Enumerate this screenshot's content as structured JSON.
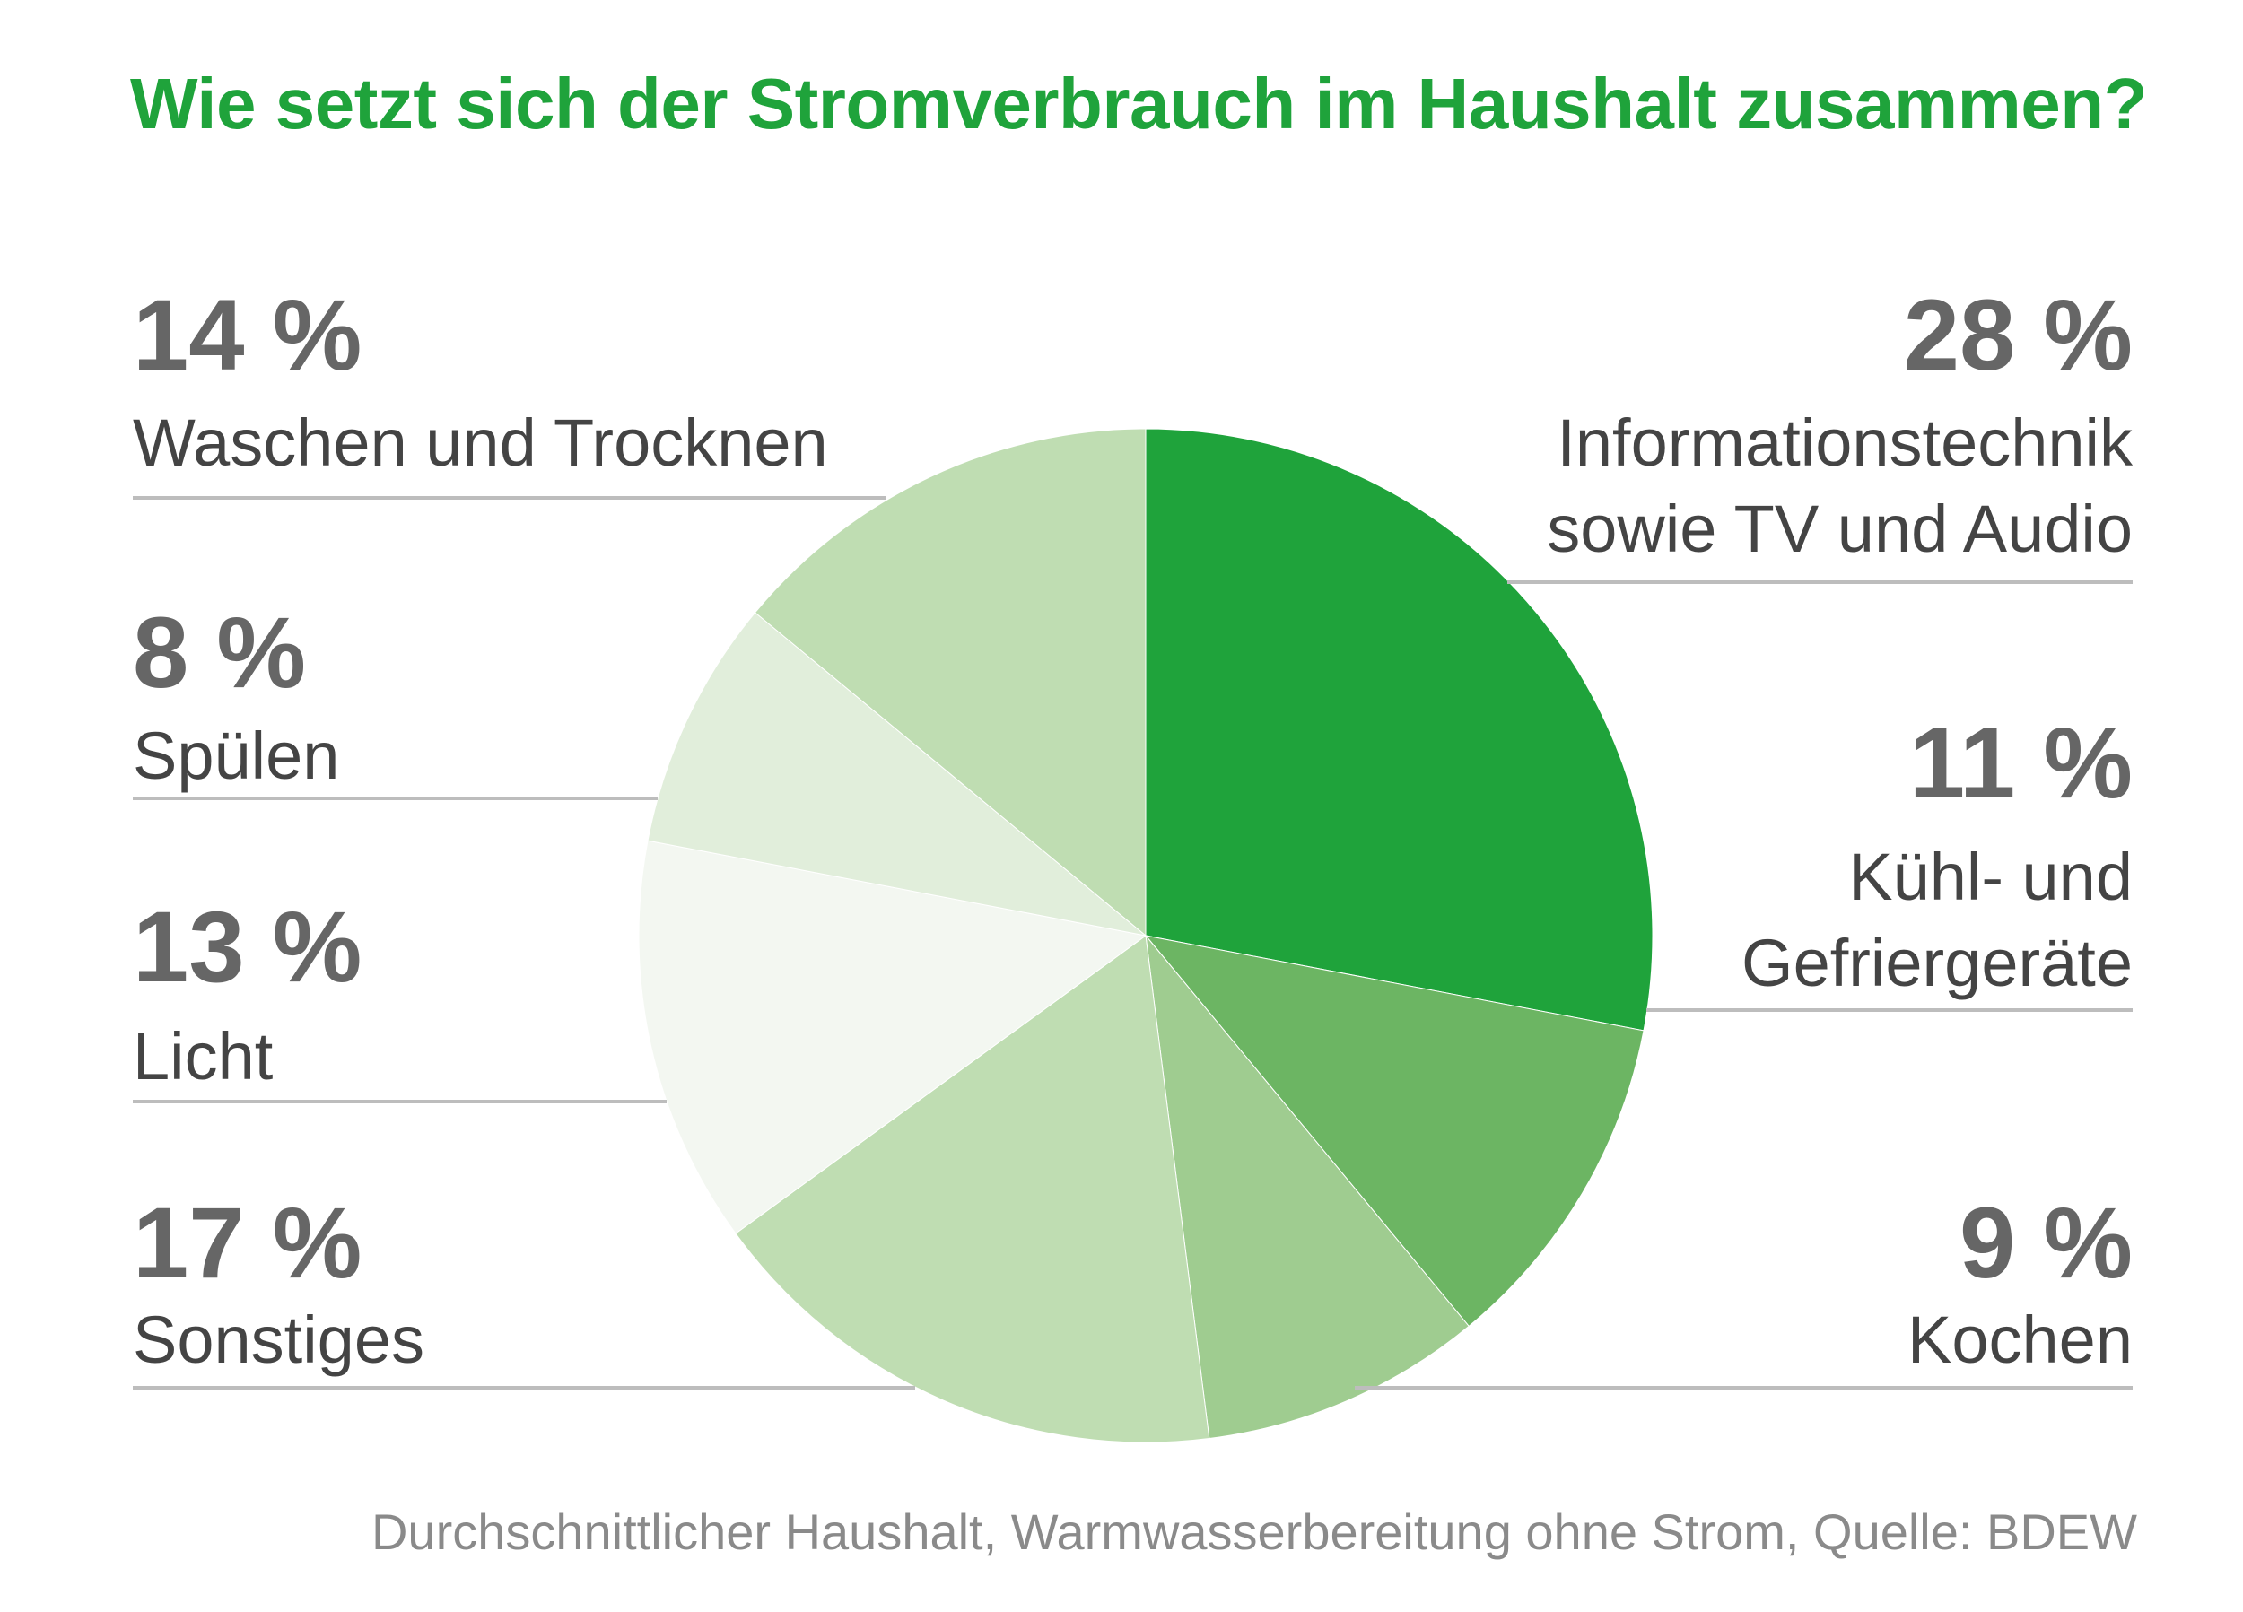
{
  "chart_data": {
    "type": "pie",
    "title": "Wie setzt sich der Stromverbrauch im Haushalt zusammen?",
    "unit": "%",
    "slices": [
      {
        "label": "Informationstechnik sowie TV und Audio",
        "label_lines": [
          "Informationstechnik",
          "sowie TV und Audio"
        ],
        "value": 28,
        "display": "28 %",
        "color": "#1fa33b"
      },
      {
        "label": "Kühl- und Gefriergeräte",
        "label_lines": [
          "Kühl- und",
          "Gefriergeräte"
        ],
        "value": 11,
        "display": "11 %",
        "color": "#6cb563"
      },
      {
        "label": "Kochen",
        "label_lines": [
          "Kochen"
        ],
        "value": 9,
        "display": "9 %",
        "color": "#9fcc90"
      },
      {
        "label": "Sonstiges",
        "label_lines": [
          "Sonstiges"
        ],
        "value": 17,
        "display": "17 %",
        "color": "#bfddb2"
      },
      {
        "label": "Licht",
        "label_lines": [
          "Licht"
        ],
        "value": 13,
        "display": "13 %",
        "color": "#f3f7f1"
      },
      {
        "label": "Spülen",
        "label_lines": [
          "Spülen"
        ],
        "value": 8,
        "display": "8 %",
        "color": "#e1eedb"
      },
      {
        "label": "Waschen und Trocknen",
        "label_lines": [
          "Waschen und Trocknen"
        ],
        "value": 14,
        "display": "14 %",
        "color": "#bfddb2"
      }
    ],
    "source": "Durchschnittlicher Haushalt, Warmwasserbereitung ohne Strom, Quelle: BDEW"
  }
}
